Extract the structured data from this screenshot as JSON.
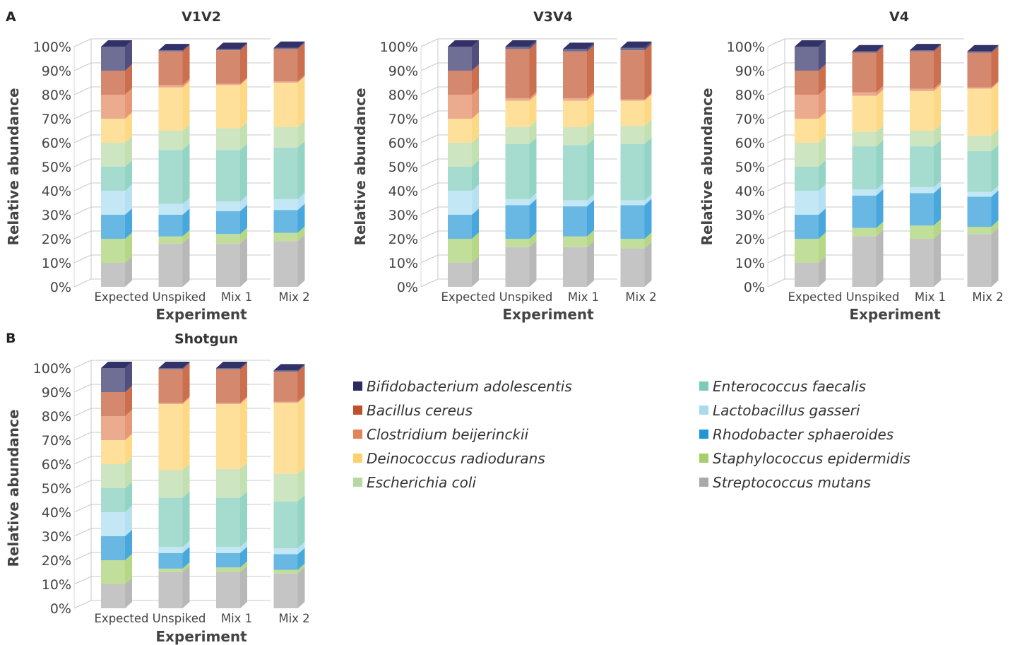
{
  "panel_letters": [
    "A",
    "B"
  ],
  "legend": {
    "items": [
      {
        "name": "Bifidobacterium adolescentis",
        "color": "#2b2a63"
      },
      {
        "name": "Bacillus cereus",
        "color": "#c0502a"
      },
      {
        "name": "Clostridium beijerinckii",
        "color": "#e2835a"
      },
      {
        "name": "Deinococcus radiodurans",
        "color": "#fdd16c"
      },
      {
        "name": "Escherichia coli",
        "color": "#b6d9a2"
      },
      {
        "name": "Enterococcus faecalis",
        "color": "#7ccbb8"
      },
      {
        "name": "Lactobacillus gasseri",
        "color": "#a8dbf0"
      },
      {
        "name": "Rhodobacter sphaeroides",
        "color": "#2196d6"
      },
      {
        "name": "Staphylococcus epidermidis",
        "color": "#a6cf6c"
      },
      {
        "name": "Streptococcus mutans",
        "color": "#a9a9a9"
      }
    ]
  },
  "chart_data": [
    {
      "type": "bar",
      "stacked": true,
      "title": "V1V2",
      "xlabel": "Experiment",
      "ylabel": "Relative abundance",
      "ylim": [
        0,
        100
      ],
      "yticks": [
        "0%",
        "10%",
        "20%",
        "30%",
        "40%",
        "50%",
        "60%",
        "70%",
        "80%",
        "90%",
        "100%"
      ],
      "categories": [
        "Expected",
        "Unspiked",
        "Mix 1",
        "Mix 2"
      ],
      "series": [
        {
          "name": "Streptococcus mutans",
          "values": [
            10,
            18,
            18,
            19
          ]
        },
        {
          "name": "Staphylococcus epidermidis",
          "values": [
            10,
            3,
            4,
            3.5
          ]
        },
        {
          "name": "Rhodobacter sphaeroides",
          "values": [
            10,
            9,
            9.5,
            9.5
          ]
        },
        {
          "name": "Lactobacillus gasseri",
          "values": [
            10,
            4.5,
            4,
            4.5
          ]
        },
        {
          "name": "Enterococcus faecalis",
          "values": [
            10,
            22.5,
            21.5,
            21.5
          ]
        },
        {
          "name": "Escherichia coli",
          "values": [
            10,
            8,
            9,
            8.5
          ]
        },
        {
          "name": "Deinococcus radiodurans",
          "values": [
            10,
            18,
            18,
            18.5
          ]
        },
        {
          "name": "Clostridium beijerinckii",
          "values": [
            10,
            1,
            0.5,
            0.5
          ]
        },
        {
          "name": "Bacillus cereus",
          "values": [
            10,
            14,
            14,
            13.5
          ]
        },
        {
          "name": "Bifidobacterium adolescentis",
          "values": [
            10,
            0.5,
            0.5,
            0.5
          ]
        }
      ]
    },
    {
      "type": "bar",
      "stacked": true,
      "title": "V3V4",
      "xlabel": "Experiment",
      "ylabel": "Relative abundance",
      "ylim": [
        0,
        100
      ],
      "yticks": [
        "0%",
        "10%",
        "20%",
        "30%",
        "40%",
        "50%",
        "60%",
        "70%",
        "80%",
        "90%",
        "100%"
      ],
      "categories": [
        "Expected",
        "Unspiked",
        "Mix 1",
        "Mix 2"
      ],
      "series": [
        {
          "name": "Streptococcus mutans",
          "values": [
            10,
            16.5,
            16.5,
            16
          ]
        },
        {
          "name": "Staphylococcus epidermidis",
          "values": [
            10,
            3.5,
            4.5,
            4
          ]
        },
        {
          "name": "Rhodobacter sphaeroides",
          "values": [
            10,
            14,
            12.5,
            14
          ]
        },
        {
          "name": "Lactobacillus gasseri",
          "values": [
            10,
            2.5,
            2.5,
            2
          ]
        },
        {
          "name": "Enterococcus faecalis",
          "values": [
            10,
            23,
            23,
            23.5
          ]
        },
        {
          "name": "Escherichia coli",
          "values": [
            10,
            7,
            7.5,
            7.5
          ]
        },
        {
          "name": "Deinococcus radiodurans",
          "values": [
            10,
            11,
            11,
            10.5
          ]
        },
        {
          "name": "Clostridium beijerinckii",
          "values": [
            10,
            1,
            1,
            0.5
          ]
        },
        {
          "name": "Bacillus cereus",
          "values": [
            10,
            20.5,
            19.5,
            20.5
          ]
        },
        {
          "name": "Bifidobacterium adolescentis",
          "values": [
            10,
            1,
            1,
            1
          ]
        }
      ]
    },
    {
      "type": "bar",
      "stacked": true,
      "title": "V4",
      "xlabel": "Experiment",
      "ylabel": "Relative abundance",
      "ylim": [
        0,
        100
      ],
      "yticks": [
        "0%",
        "10%",
        "20%",
        "30%",
        "40%",
        "50%",
        "60%",
        "70%",
        "80%",
        "90%",
        "100%"
      ],
      "categories": [
        "Expected",
        "Unspiked",
        "Mix 1",
        "Mix 2"
      ],
      "series": [
        {
          "name": "Streptococcus mutans",
          "values": [
            10,
            21,
            20,
            22
          ]
        },
        {
          "name": "Staphylococcus epidermidis",
          "values": [
            10,
            3.5,
            5.5,
            3
          ]
        },
        {
          "name": "Rhodobacter sphaeroides",
          "values": [
            10,
            13.5,
            13.5,
            12.5
          ]
        },
        {
          "name": "Lactobacillus gasseri",
          "values": [
            10,
            2.5,
            2.5,
            2
          ]
        },
        {
          "name": "Enterococcus faecalis",
          "values": [
            10,
            18,
            17,
            17
          ]
        },
        {
          "name": "Escherichia coli",
          "values": [
            10,
            6,
            6.5,
            6.5
          ]
        },
        {
          "name": "Deinococcus radiodurans",
          "values": [
            10,
            15,
            16.5,
            19.5
          ]
        },
        {
          "name": "Clostridium beijerinckii",
          "values": [
            10,
            1.5,
            1,
            0.5
          ]
        },
        {
          "name": "Bacillus cereus",
          "values": [
            10,
            16.5,
            15.5,
            14.5
          ]
        },
        {
          "name": "Bifidobacterium adolescentis",
          "values": [
            10,
            0.5,
            0.5,
            0.5
          ]
        }
      ]
    },
    {
      "type": "bar",
      "stacked": true,
      "title": "Shotgun",
      "xlabel": "Experiment",
      "ylabel": "Relative abundance",
      "ylim": [
        0,
        100
      ],
      "yticks": [
        "0%",
        "10%",
        "20%",
        "30%",
        "40%",
        "50%",
        "60%",
        "70%",
        "80%",
        "90%",
        "100%"
      ],
      "categories": [
        "Expected",
        "Unspiked",
        "Mix 1",
        "Mix 2"
      ],
      "series": [
        {
          "name": "Streptococcus mutans",
          "values": [
            10,
            15,
            15,
            14.5
          ]
        },
        {
          "name": "Staphylococcus epidermidis",
          "values": [
            10,
            1.5,
            2,
            1.5
          ]
        },
        {
          "name": "Rhodobacter sphaeroides",
          "values": [
            10,
            6.5,
            6,
            6.5
          ]
        },
        {
          "name": "Lactobacillus gasseri",
          "values": [
            10,
            2.5,
            2.5,
            2.5
          ]
        },
        {
          "name": "Enterococcus faecalis",
          "values": [
            10,
            20.5,
            20.5,
            19.5
          ]
        },
        {
          "name": "Escherichia coli",
          "values": [
            10,
            11.5,
            12,
            11.5
          ]
        },
        {
          "name": "Deinococcus radiodurans",
          "values": [
            10,
            27.5,
            27,
            29.5
          ]
        },
        {
          "name": "Clostridium beijerinckii",
          "values": [
            10,
            0.5,
            0.5,
            0.5
          ]
        },
        {
          "name": "Bacillus cereus",
          "values": [
            10,
            14,
            14,
            12.5
          ]
        },
        {
          "name": "Bifidobacterium adolescentis",
          "values": [
            10,
            0.5,
            0.5,
            0.5
          ]
        }
      ]
    }
  ]
}
